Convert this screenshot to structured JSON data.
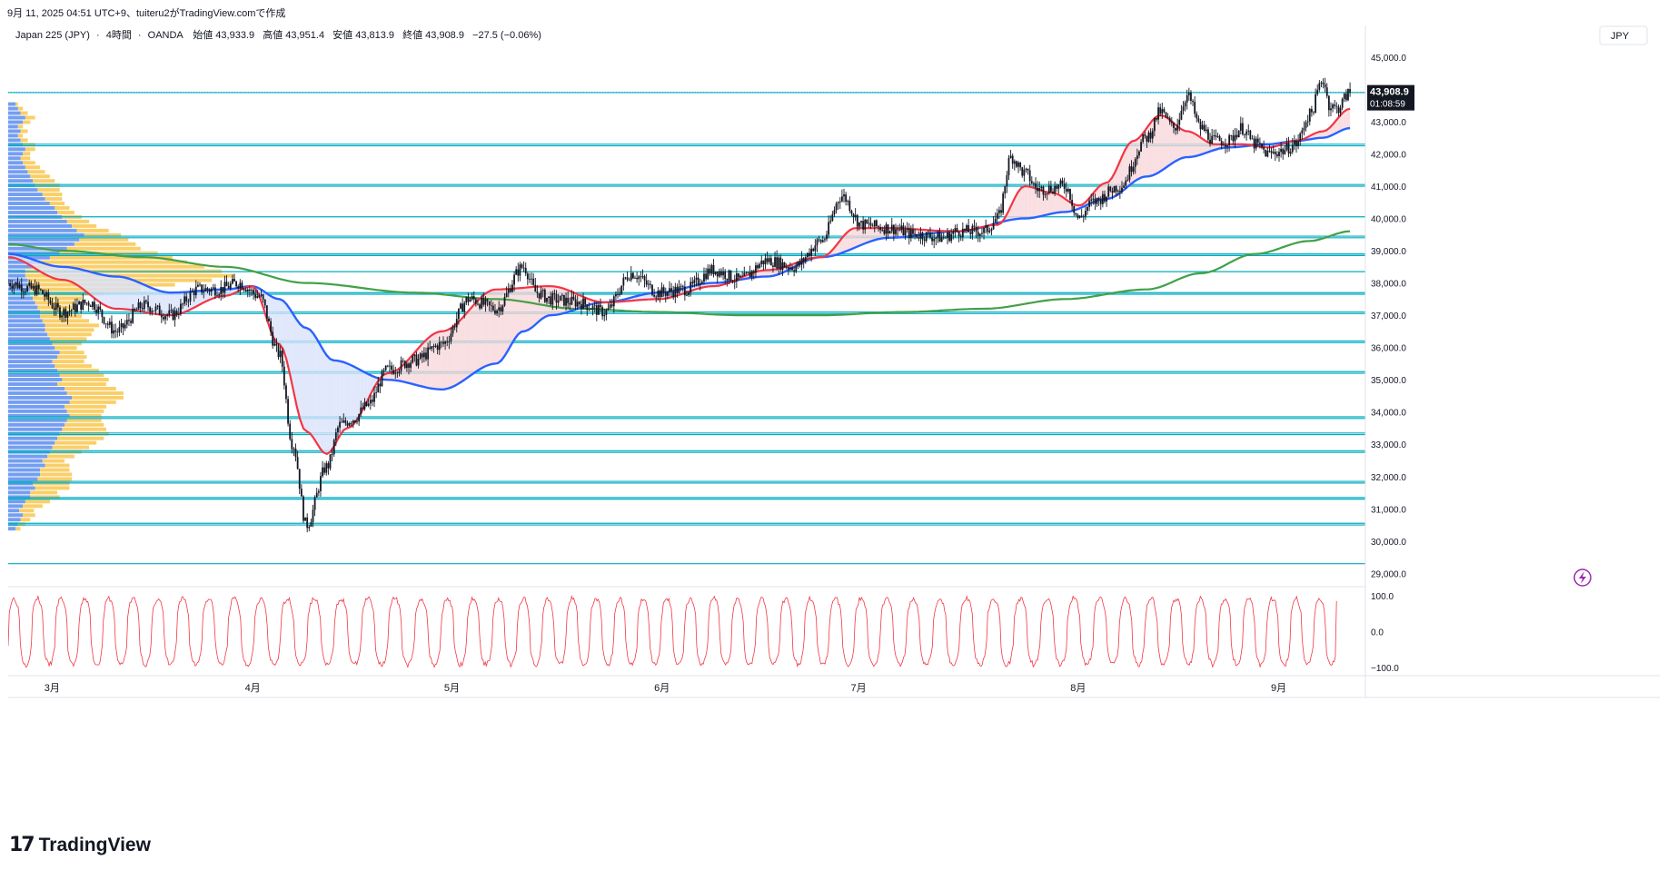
{
  "header": {
    "publish_line": "9月 11, 2025 04:51 UTC+9、tuiteru2がTradingView.comで作成"
  },
  "legend": {
    "symbol": "Japan 225 (JPY)",
    "interval": "4時間",
    "broker": "OANDA",
    "open_label": "始値",
    "open": "43,933.9",
    "high_label": "高値",
    "high": "43,951.4",
    "low_label": "安値",
    "low": "43,813.9",
    "close_label": "終値",
    "close": "43,908.9",
    "change": "−27.5 (−0.06%)"
  },
  "currency": "JPY",
  "price_tag": {
    "price": "43,908.9",
    "countdown": "01:08:59"
  },
  "footer": {
    "brand": "TradingView"
  },
  "colors": {
    "price": "#131722",
    "ma_fast": "#f23645",
    "ma_mid": "#2962ff",
    "ma_slow": "#43a047",
    "hlines": "#00acc1",
    "oscillator": "#f23645",
    "vp_up": "#5b8def",
    "vp_down": "#f9c74f",
    "cloud_up": "#f8d7da",
    "cloud_down": "#d9e2fb"
  },
  "chart_data": [
    {
      "type": "line",
      "name": "price_panel",
      "y_axis": {
        "ticks": [
          29000,
          30000,
          31000,
          32000,
          33000,
          34000,
          35000,
          36000,
          37000,
          38000,
          39000,
          40000,
          41000,
          42000,
          43000,
          44000,
          45000
        ],
        "tick_labels": [
          "29,000.0",
          "30,000.0",
          "31,000.0",
          "32,000.0",
          "33,000.0",
          "34,000.0",
          "35,000.0",
          "36,000.0",
          "37,000.0",
          "38,000.0",
          "39,000.0",
          "40,000.0",
          "41,000.0",
          "42,000.0",
          "43,000.0",
          "44,000.0",
          "45,000.0"
        ],
        "ylim": [
          28700,
          45700
        ]
      },
      "x_axis": {
        "xlim": [
          0,
          1
        ],
        "month_ticks": [
          {
            "label": "3月",
            "t": 0.03
          },
          {
            "label": "4月",
            "t": 0.178
          },
          {
            "label": "5月",
            "t": 0.325
          },
          {
            "label": "6月",
            "t": 0.48
          },
          {
            "label": "7月",
            "t": 0.625
          },
          {
            "label": "8月",
            "t": 0.787
          },
          {
            "label": "9月",
            "t": 0.935
          }
        ]
      },
      "price_series": {
        "t": [
          0.0,
          0.02,
          0.04,
          0.06,
          0.08,
          0.1,
          0.12,
          0.14,
          0.155,
          0.17,
          0.185,
          0.2,
          0.21,
          0.22,
          0.235,
          0.245,
          0.255,
          0.265,
          0.28,
          0.3,
          0.32,
          0.34,
          0.36,
          0.38,
          0.39,
          0.4,
          0.42,
          0.44,
          0.46,
          0.48,
          0.5,
          0.52,
          0.54,
          0.56,
          0.58,
          0.6,
          0.615,
          0.63,
          0.65,
          0.67,
          0.69,
          0.7,
          0.72,
          0.73,
          0.74,
          0.75,
          0.76,
          0.78,
          0.79,
          0.8,
          0.82,
          0.84,
          0.85,
          0.86,
          0.87,
          0.88,
          0.89,
          0.9,
          0.91,
          0.92,
          0.93,
          0.94,
          0.95,
          0.96,
          0.97,
          0.975,
          0.98,
          0.99
        ],
        "close": [
          38000,
          37800,
          37100,
          37400,
          36500,
          37300,
          37000,
          37800,
          37800,
          38000,
          37600,
          35800,
          33000,
          30500,
          32300,
          33600,
          33800,
          34200,
          35300,
          35600,
          36100,
          37500,
          37200,
          38500,
          37700,
          37500,
          37400,
          37100,
          38300,
          37700,
          37800,
          38400,
          38100,
          38700,
          38500,
          39300,
          40700,
          39800,
          39700,
          39500,
          39400,
          39600,
          39600,
          40000,
          41900,
          41400,
          40900,
          41000,
          40000,
          40500,
          41000,
          42500,
          43300,
          42800,
          43800,
          42800,
          42400,
          42400,
          42800,
          42300,
          42000,
          42100,
          42300,
          43200,
          44300,
          43500,
          43400,
          43900
        ]
      },
      "ma_fast": {
        "t": [
          0.0,
          0.04,
          0.08,
          0.12,
          0.16,
          0.18,
          0.2,
          0.22,
          0.235,
          0.25,
          0.28,
          0.32,
          0.36,
          0.4,
          0.44,
          0.48,
          0.52,
          0.56,
          0.6,
          0.625,
          0.65,
          0.7,
          0.73,
          0.75,
          0.77,
          0.79,
          0.81,
          0.83,
          0.85,
          0.87,
          0.89,
          0.91,
          0.93,
          0.95,
          0.97,
          0.99
        ],
        "value": [
          38800,
          38100,
          37200,
          37000,
          37600,
          37900,
          36100,
          33400,
          32700,
          33500,
          35200,
          36500,
          37800,
          37900,
          37400,
          37500,
          37900,
          38400,
          38800,
          39700,
          39700,
          39600,
          39800,
          41000,
          40800,
          40400,
          41100,
          42400,
          43200,
          42700,
          42300,
          42300,
          42200,
          42400,
          42700,
          43400
        ]
      },
      "ma_mid": {
        "t": [
          0.0,
          0.04,
          0.08,
          0.12,
          0.16,
          0.18,
          0.2,
          0.22,
          0.24,
          0.28,
          0.32,
          0.36,
          0.38,
          0.4,
          0.44,
          0.48,
          0.52,
          0.56,
          0.6,
          0.65,
          0.7,
          0.75,
          0.78,
          0.81,
          0.84,
          0.87,
          0.9,
          0.93,
          0.95,
          0.97,
          0.99
        ],
        "value": [
          38900,
          38500,
          38200,
          37700,
          37800,
          37900,
          37500,
          36600,
          35600,
          35000,
          34700,
          35500,
          36500,
          37000,
          37400,
          37700,
          38000,
          38200,
          38800,
          39400,
          39600,
          40000,
          40200,
          40600,
          41300,
          41900,
          42200,
          42300,
          42400,
          42500,
          42800
        ]
      },
      "ma_slow": {
        "t": [
          0.0,
          0.04,
          0.1,
          0.16,
          0.22,
          0.3,
          0.36,
          0.42,
          0.48,
          0.54,
          0.6,
          0.66,
          0.72,
          0.78,
          0.84,
          0.88,
          0.92,
          0.96,
          0.99
        ],
        "value": [
          39200,
          39000,
          38800,
          38500,
          38000,
          37700,
          37500,
          37200,
          37100,
          37000,
          37000,
          37100,
          37200,
          37500,
          37800,
          38300,
          38900,
          39300,
          39600
        ]
      },
      "horizontal_levels": [
        43900,
        42300,
        42250,
        41050,
        41000,
        40050,
        39450,
        39400,
        38900,
        38850,
        38350,
        37700,
        37650,
        37100,
        37050,
        36200,
        36150,
        35250,
        35200,
        33850,
        33800,
        33350,
        33300,
        32800,
        32750,
        31850,
        31800,
        31350,
        31300,
        30550,
        30500,
        29300
      ],
      "volume_profile": {
        "bins_low": 30300,
        "bin_height": 140,
        "up": [
          6,
          8,
          10,
          12,
          9,
          12,
          14,
          18,
          18,
          22,
          20,
          24,
          26,
          26,
          30,
          28,
          32,
          34,
          36,
          38,
          40,
          42,
          44,
          46,
          48,
          50,
          48,
          46,
          50,
          52,
          48,
          46,
          40,
          44,
          42,
          40,
          38,
          36,
          40,
          42,
          38,
          36,
          34,
          32,
          30,
          30,
          28,
          26,
          26,
          24,
          22,
          20,
          18,
          18,
          16,
          16,
          14,
          14,
          20,
          26,
          34,
          42,
          48,
          54,
          58,
          62,
          56,
          52,
          48,
          44,
          40,
          38,
          34,
          30,
          28,
          24,
          22,
          20,
          18,
          16,
          14,
          12,
          10,
          12,
          14,
          12,
          10,
          8,
          10,
          8,
          12,
          14,
          10,
          8,
          6
        ],
        "down": [
          4,
          6,
          8,
          10,
          12,
          16,
          20,
          24,
          22,
          28,
          30,
          28,
          26,
          24,
          20,
          18,
          22,
          26,
          30,
          34,
          38,
          40,
          36,
          32,
          28,
          26,
          30,
          34,
          38,
          42,
          46,
          42,
          40,
          38,
          36,
          34,
          30,
          26,
          24,
          20,
          18,
          24,
          30,
          36,
          40,
          44,
          38,
          34,
          30,
          28,
          32,
          40,
          60,
          90,
          120,
          150,
          170,
          160,
          140,
          120,
          100,
          80,
          60,
          50,
          40,
          30,
          26,
          20,
          18,
          16,
          14,
          12,
          12,
          14,
          16,
          18,
          20,
          18,
          16,
          14,
          12,
          10,
          8,
          6,
          8,
          10,
          6,
          4,
          6,
          4,
          6,
          8,
          6,
          4,
          2
        ]
      },
      "ylabel": "",
      "title": ""
    },
    {
      "type": "line",
      "name": "oscillator_panel",
      "y_axis": {
        "ticks": [
          100,
          0,
          -100
        ],
        "tick_labels": [
          "100.0",
          "0.0",
          "−100.0"
        ],
        "ylim": [
          -115,
          115
        ]
      },
      "cycles": 54,
      "series": {
        "t": [
          0.0,
          0.98
        ],
        "value": [
          -40,
          85
        ]
      }
    }
  ]
}
